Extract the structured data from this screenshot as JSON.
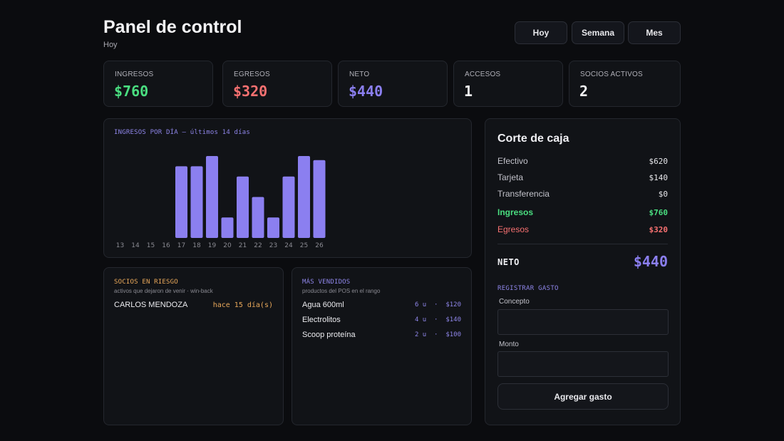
{
  "header": {
    "title": "Panel de control",
    "subtitle": "Hoy",
    "range_buttons": [
      "Hoy",
      "Semana",
      "Mes"
    ]
  },
  "kpis": [
    {
      "label": "INGRESOS",
      "value": "$760",
      "color": "#4ade80"
    },
    {
      "label": "EGRESOS",
      "value": "$320",
      "color": "#f87171"
    },
    {
      "label": "NETO",
      "value": "$440",
      "color": "#8b7ff0"
    },
    {
      "label": "ACCESOS",
      "value": "1",
      "color": "#f4f4f6"
    },
    {
      "label": "SOCIOS ACTIVOS",
      "value": "2",
      "color": "#f4f4f6"
    }
  ],
  "chart": {
    "title": "INGRESOS POR DÍA — últimos 14 días"
  },
  "chart_data": {
    "type": "bar",
    "title": "INGRESOS POR DÍA — últimos 14 días",
    "categories": [
      "13",
      "14",
      "15",
      "16",
      "17",
      "18",
      "19",
      "20",
      "21",
      "22",
      "23",
      "24",
      "25",
      "26"
    ],
    "values": [
      0,
      0,
      0,
      0,
      140,
      140,
      160,
      40,
      120,
      80,
      40,
      120,
      160,
      152
    ],
    "bar_color": "#8b7ff0",
    "ylim": [
      0,
      160
    ],
    "grid": false,
    "xlabel": "",
    "ylabel": ""
  },
  "corte": {
    "title": "Corte de caja",
    "rows": [
      {
        "label": "Efectivo",
        "value": "$620"
      },
      {
        "label": "Tarjeta",
        "value": "$140"
      },
      {
        "label": "Transferencia",
        "value": "$0"
      }
    ],
    "ingresos": {
      "label": "Ingresos",
      "value": "$760"
    },
    "egresos": {
      "label": "Egresos",
      "value": "$320"
    },
    "neto": {
      "label": "NETO",
      "value": "$440"
    },
    "registrar": {
      "title": "REGISTRAR GASTO",
      "concepto_label": "Concepto",
      "concepto_value": "",
      "monto_label": "Monto",
      "monto_value": "",
      "button_label": "Agregar gasto"
    }
  },
  "riesgo": {
    "title": "SOCIOS EN RIESGO",
    "subtitle": "activos que dejaron de venir · win-back",
    "rows": [
      {
        "name": "CARLOS MENDOZA",
        "days": "hace 15 día(s)"
      }
    ]
  },
  "vendidos": {
    "title": "MÁS VENDIDOS",
    "subtitle": "productos del POS en el rango",
    "rows": [
      {
        "name": "Agua 600ml",
        "qty": "6 u",
        "total": "$120"
      },
      {
        "name": "Electrolitos",
        "qty": "4 u",
        "total": "$140"
      },
      {
        "name": "Scoop proteína",
        "qty": "2 u",
        "total": "$100"
      }
    ]
  },
  "colors": {
    "accent": "#8b7ff0",
    "positive": "#4ade80",
    "negative": "#f87171",
    "warning": "#e9a85a"
  }
}
